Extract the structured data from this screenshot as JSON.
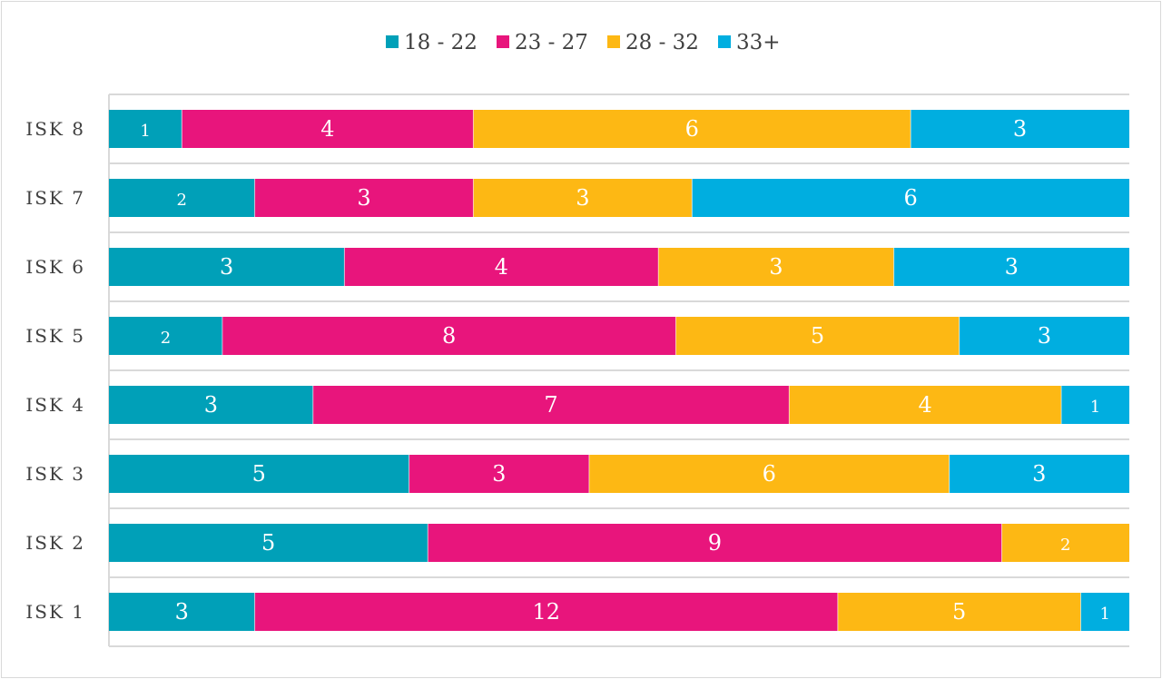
{
  "chart_data": {
    "type": "bar",
    "orientation": "horizontal",
    "stacking": "percent",
    "categories": [
      "ISK 1",
      "ISK 2",
      "ISK 3",
      "ISK 4",
      "ISK 5",
      "ISK 6",
      "ISK 7",
      "ISK 8"
    ],
    "series": [
      {
        "name": "18 - 22",
        "color": "#00a0b8",
        "values": [
          3,
          5,
          5,
          3,
          2,
          3,
          2,
          1
        ]
      },
      {
        "name": "23 - 27",
        "color": "#e8157c",
        "values": [
          12,
          9,
          3,
          7,
          8,
          4,
          3,
          4
        ]
      },
      {
        "name": "28 - 32",
        "color": "#fdb814",
        "values": [
          5,
          2,
          6,
          4,
          5,
          3,
          3,
          6
        ]
      },
      {
        "name": "33+",
        "color": "#00aee0",
        "values": [
          1,
          0,
          3,
          1,
          3,
          3,
          6,
          3
        ]
      }
    ],
    "legend_position": "top",
    "gridlines": true,
    "data_labels": true,
    "title": "",
    "xlabel": "",
    "ylabel": ""
  }
}
